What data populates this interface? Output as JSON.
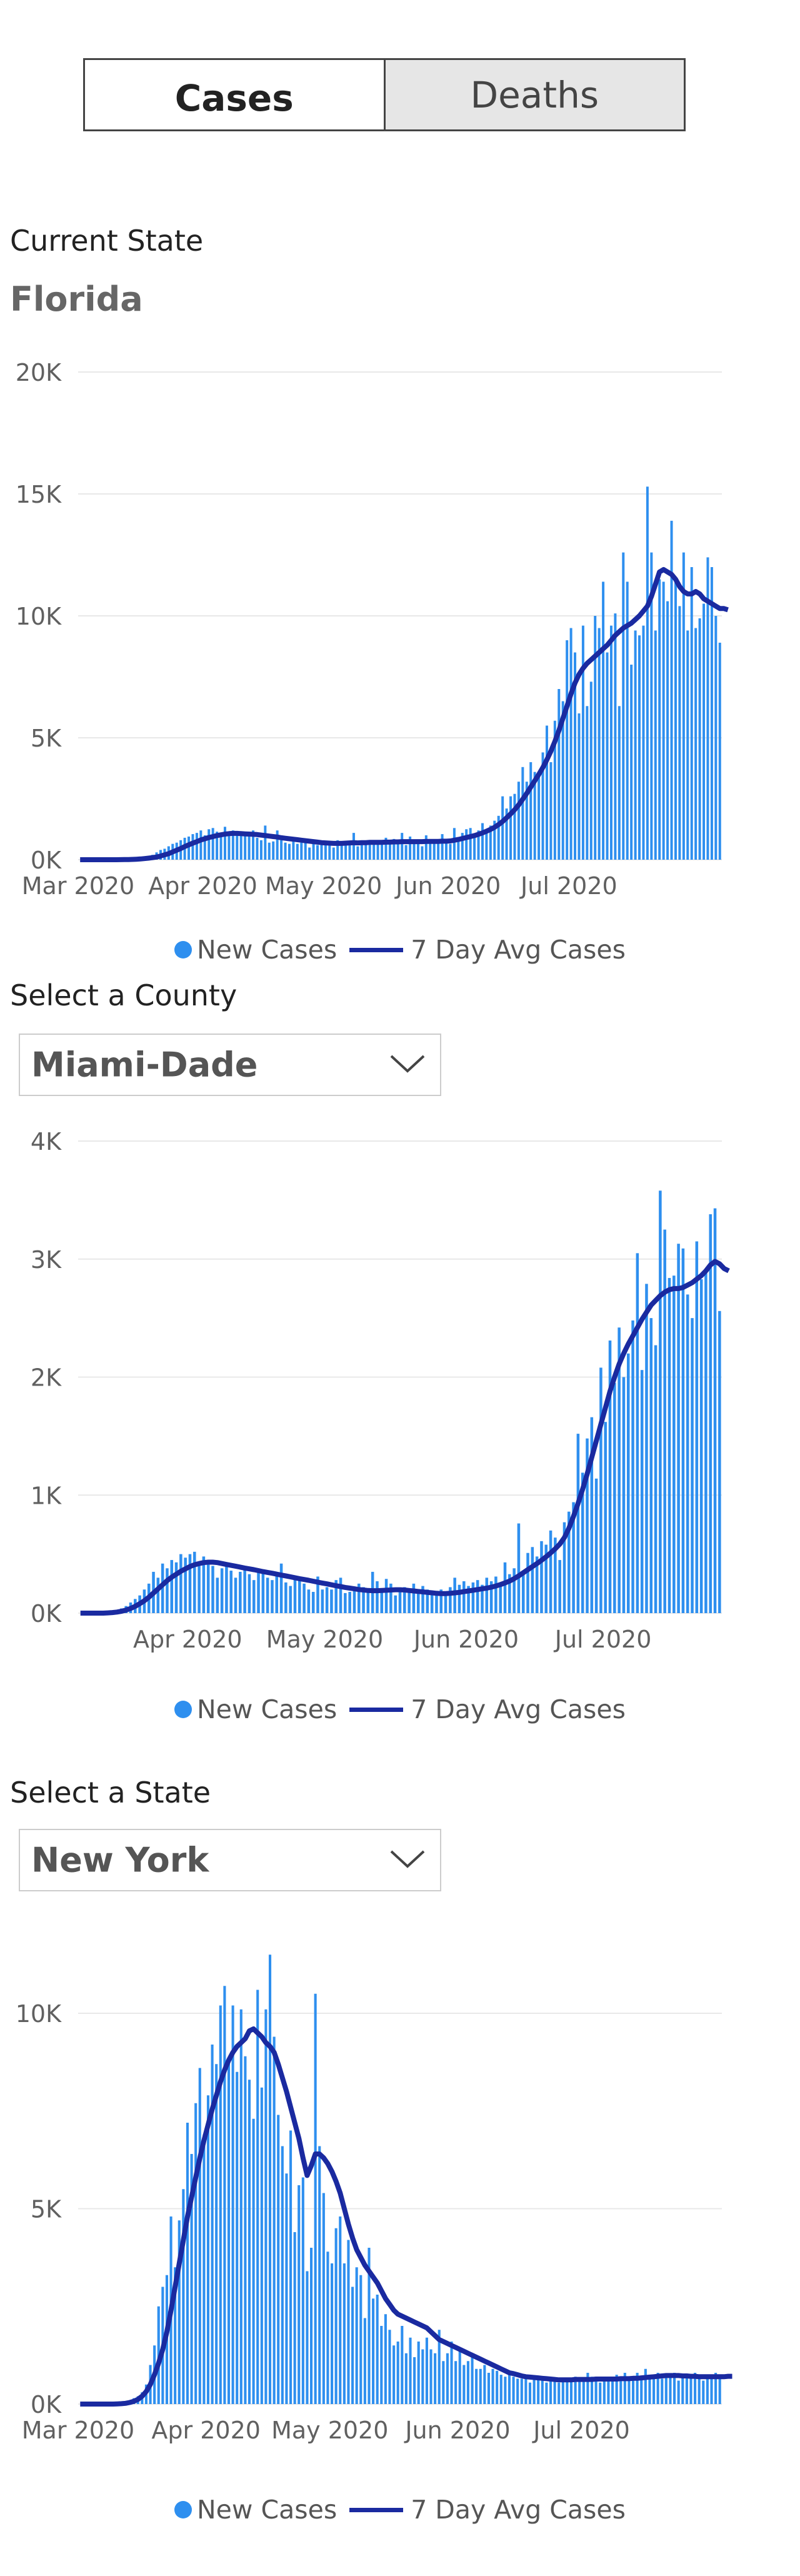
{
  "toggle": {
    "cases_label": "Cases",
    "deaths_label": "Deaths",
    "selected": "Cases"
  },
  "state_section": {
    "label": "Current State",
    "value": "Florida"
  },
  "county_selector": {
    "label": "Select a County",
    "value": "Miami-Dade"
  },
  "state_selector": {
    "label": "Select a State",
    "value": "New York"
  },
  "legend": {
    "bars": "New Cases",
    "line": "7 Day Avg Cases"
  },
  "colors": {
    "bars": "#2e8fef",
    "line": "#1a2aa0",
    "grid": "#e8e8e8",
    "axis_text": "#606060"
  },
  "chart_data": [
    {
      "type": "bar",
      "title": "",
      "xlabel": "",
      "ylabel": "",
      "x_start": "2020-03-01",
      "x_ticks": [
        "Mar 2020",
        "Apr 2020",
        "May 2020",
        "Jun 2020",
        "Jul 2020"
      ],
      "y_ticks": [
        "0K",
        "5K",
        "10K",
        "15K",
        "20K"
      ],
      "ylim": [
        0,
        20000
      ],
      "grid": true,
      "legend": "bottom-center",
      "series": [
        {
          "name": "New Cases",
          "type": "bar",
          "values": [
            0,
            0,
            0,
            0,
            0,
            0,
            0,
            0,
            0,
            0,
            10,
            15,
            25,
            40,
            60,
            80,
            100,
            150,
            200,
            300,
            400,
            450,
            550,
            650,
            700,
            800,
            900,
            950,
            1050,
            1100,
            1200,
            1000,
            1250,
            1300,
            1150,
            1100,
            1350,
            1050,
            1200,
            1000,
            1100,
            1050,
            1050,
            1200,
            900,
            800,
            1400,
            700,
            750,
            1200,
            800,
            700,
            650,
            800,
            650,
            700,
            750,
            500,
            700,
            600,
            650,
            700,
            750,
            500,
            800,
            650,
            750,
            700,
            1100,
            550,
            700,
            650,
            800,
            650,
            750,
            700,
            900,
            650,
            850,
            700,
            1100,
            600,
            950,
            700,
            800,
            550,
            1000,
            800,
            750,
            700,
            1050,
            700,
            650,
            1300,
            900,
            1100,
            1250,
            1300,
            1000,
            1200,
            1500,
            1250,
            1400,
            1600,
            1800,
            2600,
            2100,
            2600,
            2700,
            3200,
            3800,
            3200,
            4000,
            3600,
            3500,
            4400,
            5500,
            4000,
            5700,
            7000,
            6500,
            9000,
            9500,
            8500,
            6000,
            9600,
            6300,
            7300,
            10000,
            9500,
            11400,
            8500,
            9600,
            10100,
            6300,
            12600,
            11400,
            8000,
            9400,
            9200,
            9600,
            15300,
            12600,
            9400,
            11500,
            11400,
            10600,
            13900,
            11400,
            10400,
            12600,
            9400,
            12000,
            9500,
            9900,
            10500,
            12400,
            12000,
            10000,
            8900
          ]
        },
        {
          "name": "7 Day Avg Cases",
          "type": "line",
          "values": [
            0,
            0,
            0,
            0,
            0,
            0,
            0,
            0,
            0,
            0,
            3,
            5,
            8,
            12,
            20,
            30,
            45,
            65,
            85,
            110,
            150,
            200,
            250,
            320,
            390,
            460,
            540,
            610,
            680,
            740,
            810,
            860,
            910,
            950,
            990,
            1020,
            1050,
            1070,
            1080,
            1080,
            1070,
            1060,
            1050,
            1040,
            1030,
            1010,
            990,
            970,
            950,
            930,
            900,
            880,
            860,
            840,
            820,
            800,
            780,
            760,
            740,
            720,
            700,
            690,
            680,
            670,
            670,
            670,
            680,
            690,
            700,
            690,
            700,
            700,
            710,
            710,
            710,
            710,
            720,
            720,
            730,
            730,
            740,
            740,
            740,
            740,
            740,
            740,
            750,
            750,
            750,
            750,
            760,
            760,
            770,
            800,
            830,
            870,
            910,
            950,
            990,
            1040,
            1100,
            1170,
            1240,
            1330,
            1440,
            1570,
            1720,
            1880,
            2050,
            2250,
            2480,
            2720,
            2980,
            3240,
            3500,
            3780,
            4100,
            4450,
            4850,
            5300,
            5800,
            6300,
            6800,
            7250,
            7600,
            7850,
            8050,
            8200,
            8350,
            8500,
            8650,
            8800,
            9000,
            9200,
            9350,
            9500,
            9600,
            9700,
            9850,
            10000,
            10200,
            10400,
            10800,
            11300,
            11800,
            11900,
            11800,
            11700,
            11500,
            11200,
            11000,
            10900,
            10900,
            11000,
            10900,
            10700,
            10600,
            10500,
            10400,
            10300,
            10300,
            10250
          ]
        }
      ]
    },
    {
      "type": "bar",
      "title": "",
      "xlabel": "",
      "ylabel": "",
      "x_start": "2020-03-08",
      "x_ticks": [
        "Apr 2020",
        "May 2020",
        "Jun 2020",
        "Jul 2020"
      ],
      "y_ticks": [
        "0K",
        "1K",
        "2K",
        "3K",
        "4K"
      ],
      "ylim": [
        0,
        4000
      ],
      "grid": true,
      "legend": "bottom-center",
      "series": [
        {
          "name": "New Cases",
          "type": "bar",
          "values": [
            0,
            0,
            0,
            0,
            0,
            0,
            5,
            10,
            20,
            40,
            60,
            90,
            120,
            150,
            200,
            250,
            350,
            300,
            420,
            380,
            450,
            430,
            500,
            470,
            500,
            520,
            400,
            480,
            440,
            400,
            300,
            380,
            420,
            360,
            300,
            350,
            400,
            330,
            280,
            350,
            370,
            300,
            280,
            330,
            420,
            260,
            230,
            300,
            310,
            250,
            200,
            180,
            310,
            200,
            220,
            200,
            280,
            300,
            170,
            180,
            200,
            250,
            220,
            190,
            350,
            270,
            200,
            290,
            250,
            150,
            200,
            220,
            180,
            250,
            170,
            230,
            200,
            160,
            150,
            200,
            170,
            220,
            300,
            240,
            270,
            230,
            260,
            280,
            240,
            300,
            270,
            310,
            230,
            430,
            330,
            380,
            760,
            350,
            510,
            560,
            480,
            610,
            580,
            700,
            640,
            450,
            770,
            860,
            940,
            1520,
            1190,
            1480,
            1660,
            1140,
            2080,
            1620,
            2310,
            1950,
            2420,
            2000,
            2200,
            2480,
            3050,
            2060,
            2790,
            2500,
            2270,
            3580,
            3250,
            2840,
            2860,
            3130,
            3090,
            2700,
            2500,
            3150,
            2830,
            2900,
            3380,
            3430,
            2560
          ]
        },
        {
          "name": "7 Day Avg Cases",
          "type": "line",
          "values": [
            0,
            0,
            0,
            0,
            0,
            0,
            2,
            5,
            9,
            16,
            26,
            40,
            58,
            80,
            105,
            135,
            170,
            205,
            240,
            275,
            305,
            330,
            355,
            375,
            395,
            410,
            420,
            428,
            432,
            432,
            428,
            420,
            412,
            405,
            398,
            390,
            382,
            375,
            368,
            360,
            352,
            345,
            338,
            330,
            322,
            315,
            308,
            300,
            292,
            285,
            278,
            270,
            262,
            255,
            248,
            240,
            232,
            225,
            218,
            212,
            206,
            200,
            196,
            192,
            190,
            190,
            192,
            194,
            196,
            198,
            198,
            196,
            192,
            188,
            184,
            180,
            176,
            172,
            168,
            166,
            166,
            168,
            172,
            176,
            182,
            188,
            194,
            200,
            206,
            212,
            220,
            230,
            242,
            256,
            272,
            292,
            316,
            342,
            368,
            394,
            420,
            448,
            478,
            510,
            545,
            585,
            640,
            720,
            820,
            930,
            1050,
            1180,
            1320,
            1460,
            1600,
            1740,
            1880,
            2000,
            2110,
            2200,
            2280,
            2350,
            2420,
            2490,
            2550,
            2610,
            2650,
            2690,
            2720,
            2740,
            2750,
            2750,
            2760,
            2780,
            2800,
            2830,
            2860,
            2900,
            2950,
            2980,
            2960,
            2920,
            2900
          ]
        }
      ]
    },
    {
      "type": "bar",
      "title": "",
      "xlabel": "",
      "ylabel": "",
      "x_start": "2020-03-01",
      "x_ticks": [
        "Mar 2020",
        "Apr 2020",
        "May 2020",
        "Jun 2020",
        "Jul 2020"
      ],
      "y_ticks": [
        "0K",
        "5K",
        "10K"
      ],
      "ylim": [
        0,
        12000
      ],
      "grid": true,
      "legend": "bottom-center",
      "series": [
        {
          "name": "New Cases",
          "type": "bar",
          "values": [
            0,
            0,
            0,
            0,
            0,
            0,
            0,
            0,
            0,
            10,
            20,
            40,
            80,
            150,
            200,
            300,
            500,
            1000,
            1500,
            2500,
            3000,
            3300,
            4800,
            3500,
            4700,
            5500,
            7200,
            6400,
            7700,
            8600,
            6900,
            7900,
            9200,
            8700,
            10200,
            10700,
            8800,
            10200,
            8500,
            10100,
            8900,
            8300,
            7300,
            10600,
            8100,
            10100,
            11500,
            9400,
            7400,
            6600,
            5900,
            7000,
            4400,
            5600,
            5800,
            3400,
            4000,
            10500,
            6600,
            5400,
            3900,
            3600,
            4500,
            4800,
            3600,
            4200,
            3000,
            3500,
            3300,
            2200,
            4000,
            2700,
            2800,
            2000,
            2300,
            1900,
            1500,
            1600,
            2000,
            1300,
            1700,
            1200,
            1600,
            1400,
            1700,
            1400,
            1300,
            1900,
            1100,
            1300,
            1600,
            1100,
            1400,
            1000,
            1100,
            1200,
            900,
            900,
            1000,
            800,
            900,
            850,
            750,
            700,
            800,
            700,
            650,
            650,
            700,
            550,
            700,
            650,
            600,
            550,
            650,
            600,
            550,
            650,
            600,
            650,
            700,
            600,
            600,
            800,
            700,
            650,
            550,
            700,
            600,
            650,
            750,
            700,
            800,
            600,
            700,
            800,
            650,
            900,
            750,
            700,
            800,
            650,
            750,
            700,
            800,
            600,
            700,
            750,
            700,
            800,
            650,
            600,
            750,
            700,
            800,
            650
          ]
        },
        {
          "name": "7 Day Avg Cases",
          "type": "line",
          "values": [
            0,
            0,
            0,
            0,
            0,
            0,
            0,
            0,
            0,
            5,
            10,
            20,
            40,
            70,
            120,
            200,
            320,
            500,
            750,
            1050,
            1400,
            1850,
            2400,
            3000,
            3600,
            4200,
            4800,
            5300,
            5800,
            6300,
            6750,
            7150,
            7550,
            7900,
            8250,
            8550,
            8800,
            9000,
            9150,
            9250,
            9350,
            9550,
            9600,
            9500,
            9400,
            9250,
            9150,
            9000,
            8700,
            8350,
            8000,
            7600,
            7200,
            6800,
            6300,
            5850,
            6100,
            6400,
            6400,
            6300,
            6150,
            5950,
            5700,
            5400,
            5000,
            4600,
            4250,
            3950,
            3750,
            3550,
            3400,
            3250,
            3100,
            2900,
            2700,
            2550,
            2400,
            2300,
            2250,
            2200,
            2150,
            2100,
            2050,
            2000,
            1950,
            1850,
            1750,
            1650,
            1600,
            1550,
            1500,
            1450,
            1400,
            1350,
            1300,
            1250,
            1200,
            1150,
            1100,
            1050,
            1000,
            950,
            900,
            850,
            800,
            780,
            750,
            720,
            700,
            690,
            680,
            670,
            660,
            650,
            640,
            630,
            620,
            620,
            620,
            620,
            630,
            630,
            630,
            630,
            630,
            640,
            640,
            640,
            640,
            640,
            640,
            650,
            650,
            650,
            660,
            660,
            670,
            680,
            690,
            700,
            710,
            720,
            730,
            730,
            730,
            730,
            720,
            720,
            710,
            710,
            700,
            700,
            700,
            700,
            700,
            700,
            700,
            710,
            710
          ]
        }
      ]
    }
  ]
}
